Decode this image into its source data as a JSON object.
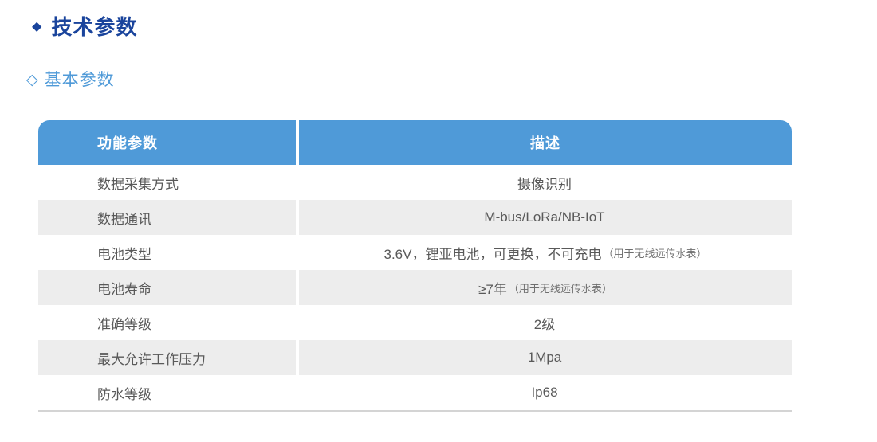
{
  "page": {
    "section_bullet": "◆",
    "section_title": "技术参数",
    "subsection_bullet": "◇",
    "subsection_title": "基本参数"
  },
  "table": {
    "col1_header": "功能参数",
    "col2_header": "描述",
    "rows": [
      {
        "label": "数据采集方式",
        "value": "摄像识别",
        "note": ""
      },
      {
        "label": "数据通讯",
        "value": "M-bus/LoRa/NB-IoT",
        "note": ""
      },
      {
        "label": "电池类型",
        "value": "3.6V，锂亚电池，可更换，不可充电",
        "note": "（用于无线远传水表）"
      },
      {
        "label": "电池寿命",
        "value": "≥7年",
        "note": "（用于无线远传水表）"
      },
      {
        "label": "准确等级",
        "value": "2级",
        "note": ""
      },
      {
        "label": "最大允许工作压力",
        "value": "1Mpa",
        "note": ""
      },
      {
        "label": "防水等级",
        "value": "Ip68",
        "note": ""
      }
    ]
  },
  "colors": {
    "title_blue": "#1A449C",
    "accent_blue": "#4F9AD8",
    "row_shade": "#EDEDED",
    "text_gray": "#595959",
    "note_gray": "#6E6E6E",
    "bottom_line": "#D4D4D4"
  }
}
